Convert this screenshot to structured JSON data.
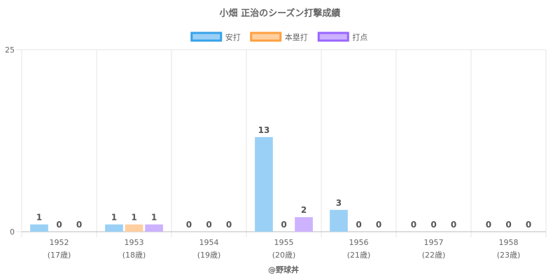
{
  "chart_data": {
    "type": "bar",
    "title": "小畑 正治のシーズン打撃成績",
    "categories": [
      "1952",
      "1953",
      "1954",
      "1955",
      "1956",
      "1957",
      "1958"
    ],
    "sub_categories": [
      "(17歳)",
      "(18歳)",
      "(19歳)",
      "(20歳)",
      "(21歳)",
      "(22歳)",
      "(23歳)"
    ],
    "series": [
      {
        "name": "安打",
        "values": [
          1,
          1,
          0,
          13,
          3,
          0,
          0
        ],
        "color": "#9ad0f5",
        "border": "#36a2eb"
      },
      {
        "name": "本塁打",
        "values": [
          0,
          1,
          0,
          0,
          0,
          0,
          0
        ],
        "color": "#ffcf9f",
        "border": "#ff9f40"
      },
      {
        "name": "打点",
        "values": [
          0,
          1,
          0,
          2,
          0,
          0,
          0
        ],
        "color": "#ccb2ff",
        "border": "#9966ff"
      }
    ],
    "ylim": [
      0,
      25
    ],
    "yticks": [
      "0",
      "25"
    ],
    "grid": true,
    "legend": "top-center",
    "credit": "@野球丼"
  }
}
